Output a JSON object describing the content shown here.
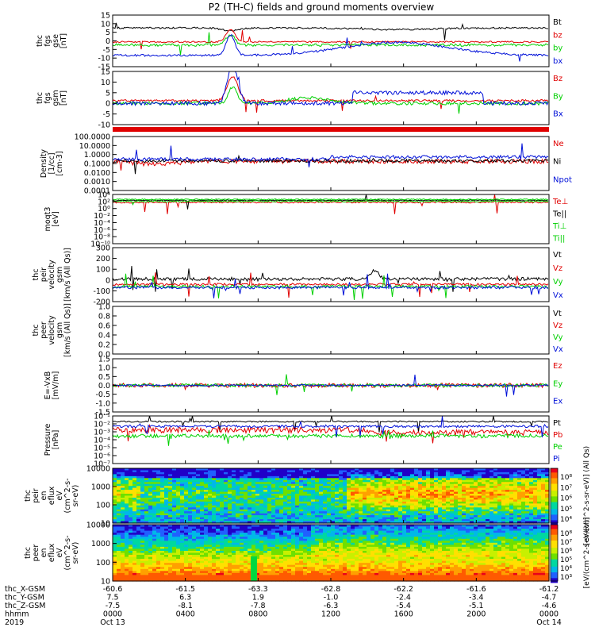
{
  "title": "P2 (TH-C) fields and ground moments overview",
  "colors": {
    "black": "#000000",
    "red": "#e00000",
    "green": "#00d000",
    "blue": "#0010d8"
  },
  "chart_data": [
    {
      "type": "line",
      "panel": "fgs_gse",
      "ylabel": [
        "thc",
        "fgs",
        "gse",
        "[nT]"
      ],
      "ylim": [
        -15,
        15
      ],
      "yticks": [
        "15",
        "10",
        "5",
        "0",
        "-5",
        "-10",
        "-15"
      ],
      "series": [
        {
          "name": "Bt",
          "color": "black"
        },
        {
          "name": "bz",
          "color": "red"
        },
        {
          "name": "by",
          "color": "green"
        },
        {
          "name": "bx",
          "color": "blue"
        }
      ]
    },
    {
      "type": "line",
      "panel": "fgs_gsm",
      "ylabel": [
        "thc",
        "fgs",
        "gsm",
        "[nT]"
      ],
      "ylim": [
        -15,
        15
      ],
      "yticks": [
        "15",
        "10",
        "5",
        "0",
        "-5",
        "-10"
      ],
      "series": [
        {
          "name": "Bz",
          "color": "red"
        },
        {
          "name": "By",
          "color": "green"
        },
        {
          "name": "Bx",
          "color": "blue"
        }
      ]
    },
    {
      "type": "line",
      "panel": "density",
      "ylabel": [
        "Density",
        "[1/cc]",
        "[cm-3]"
      ],
      "ylim": [
        0.0001,
        100
      ],
      "log": true,
      "yticks": [
        "100.0000",
        "10.0000",
        "1.0000",
        "0.1000",
        "0.0100",
        "0.0010",
        "0.0001"
      ],
      "series": [
        {
          "name": "Ne",
          "color": "red"
        },
        {
          "name": "Ni",
          "color": "black"
        },
        {
          "name": "Npot",
          "color": "blue"
        }
      ]
    },
    {
      "type": "line",
      "panel": "temperature",
      "ylabel": [
        "moqt3",
        "[eV]"
      ],
      "ylim": [
        1e-10,
        10000.0
      ],
      "log": true,
      "yticks": [
        "10⁴",
        "10²",
        "10⁰",
        "10⁻²",
        "10⁻⁴",
        "10⁻⁶",
        "10⁻⁸",
        "10⁻¹⁰"
      ],
      "series": [
        {
          "name": "Te⊥",
          "color": "red"
        },
        {
          "name": "Te||",
          "color": "black"
        },
        {
          "name": "Ti⊥",
          "color": "green"
        },
        {
          "name": "Ti||",
          "color": "green"
        }
      ]
    },
    {
      "type": "line",
      "panel": "ion_velocity",
      "ylabel": [
        "thc",
        "peir",
        "velocity",
        "gsm",
        "[km/s (All Qs)]"
      ],
      "ylim": [
        -200,
        300
      ],
      "yticks": [
        "300",
        "200",
        "100",
        "0",
        "-100",
        "-200"
      ],
      "series": [
        {
          "name": "Vt",
          "color": "black"
        },
        {
          "name": "Vz",
          "color": "red"
        },
        {
          "name": "Vy",
          "color": "green"
        },
        {
          "name": "Vx",
          "color": "blue"
        }
      ]
    },
    {
      "type": "line",
      "panel": "electron_velocity",
      "ylabel": [
        "thc",
        "peer",
        "velocity",
        "gsm",
        "[km/s (All Qs)]"
      ],
      "ylim": [
        0,
        1
      ],
      "yticks": [
        "1.0",
        "0.8",
        "0.6",
        "0.4",
        "0.2",
        "0.0"
      ],
      "series": [
        {
          "name": "Vt",
          "color": "black"
        },
        {
          "name": "Vz",
          "color": "red"
        },
        {
          "name": "Vy",
          "color": "green"
        },
        {
          "name": "Vx",
          "color": "blue"
        }
      ]
    },
    {
      "type": "line",
      "panel": "efield",
      "ylabel": [
        "E=-VxB",
        "[mV/m]"
      ],
      "ylim": [
        -1.5,
        1.5
      ],
      "yticks": [
        "1.5",
        "1.0",
        "0.5",
        "0.0",
        "-0.5",
        "-1.0",
        "-1.5"
      ],
      "series": [
        {
          "name": "Ez",
          "color": "red"
        },
        {
          "name": "Ey",
          "color": "green"
        },
        {
          "name": "Ex",
          "color": "blue"
        }
      ]
    },
    {
      "type": "line",
      "panel": "pressure",
      "ylabel": [
        "Pressure",
        "[nPa]"
      ],
      "ylim": [
        1e-07,
        0.1
      ],
      "log": true,
      "yticks": [
        "10⁻¹",
        "10⁻²",
        "10⁻³",
        "10⁻⁴",
        "10⁻⁵",
        "10⁻⁶",
        "10⁻⁷"
      ],
      "series": [
        {
          "name": "Pt",
          "color": "black"
        },
        {
          "name": "Pb",
          "color": "red"
        },
        {
          "name": "Pe",
          "color": "green"
        },
        {
          "name": "Pi",
          "color": "blue"
        }
      ]
    },
    {
      "type": "heatmap",
      "panel": "ion_spec",
      "ylabel": [
        "thc",
        "peir",
        "en",
        "eflux",
        "eV",
        "(cm^2-s-",
        "sr-eV)"
      ],
      "ylim": [
        5,
        30000
      ],
      "log": true,
      "yticks": [
        "10000",
        "1000",
        "100",
        "10"
      ],
      "colorbar": {
        "ticks": [
          "10⁸",
          "10⁷",
          "10⁶",
          "10⁵",
          "10⁴"
        ],
        "label": "[eV/(cm^2-s-sr-eV)] (All Qs)"
      }
    },
    {
      "type": "heatmap",
      "panel": "electron_spec",
      "ylabel": [
        "thc",
        "peer",
        "en",
        "eflux",
        "eV",
        "(cm^2-s-",
        "sr-eV)"
      ],
      "ylim": [
        5,
        30000
      ],
      "log": true,
      "yticks": [
        "10000",
        "1000",
        "100",
        "10"
      ],
      "colorbar": {
        "ticks": [
          "10⁸",
          "10⁷",
          "10⁶",
          "10⁵",
          "10⁴",
          "10³"
        ],
        "label": "[eV/(cm^2-s-sr-eV)]"
      }
    }
  ],
  "x_axis": {
    "labels": [
      "thc_X-GSM",
      "thc_Y-GSM",
      "thc_Z-GSM",
      "hhmm",
      "2019"
    ],
    "ticks": [
      {
        "x": "-60.6",
        "y": "7.5",
        "z": "-7.5",
        "t": "0000",
        "d": "Oct 13"
      },
      {
        "x": "-61.5",
        "y": "6.3",
        "z": "-8.1",
        "t": "0400",
        "d": ""
      },
      {
        "x": "-63.3",
        "y": "1.9",
        "z": "-7.8",
        "t": "0800",
        "d": ""
      },
      {
        "x": "-62.8",
        "y": "-1.0",
        "z": "-6.3",
        "t": "1200",
        "d": ""
      },
      {
        "x": "-62.2",
        "y": "-2.4",
        "z": "-5.4",
        "t": "1600",
        "d": ""
      },
      {
        "x": "-61.6",
        "y": "-3.4",
        "z": "-5.1",
        "t": "2000",
        "d": ""
      },
      {
        "x": "-61.2",
        "y": "-4.7",
        "z": "-4.6",
        "t": "0000",
        "d": "Oct 14"
      }
    ]
  }
}
